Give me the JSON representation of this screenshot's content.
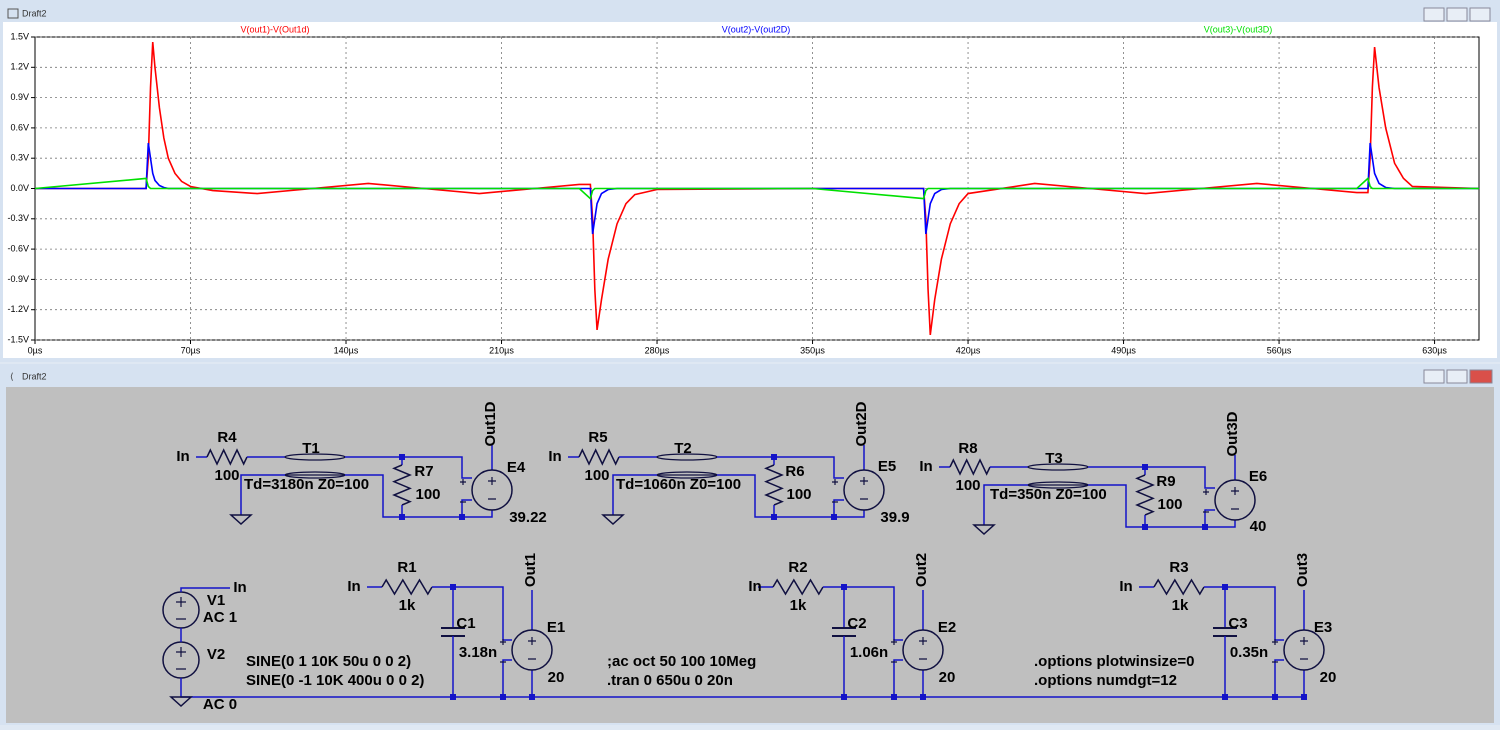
{
  "plot_window": {
    "title": "Draft2"
  },
  "chart_data": {
    "type": "line",
    "x": [
      0,
      50,
      51,
      52,
      53,
      54,
      56,
      58,
      60,
      63,
      66,
      70,
      80,
      100,
      125,
      150,
      175,
      200,
      225,
      245,
      250,
      251,
      252,
      253,
      255,
      258,
      262,
      266,
      270,
      280,
      350,
      400,
      401,
      402,
      403,
      405,
      408,
      412,
      416,
      420,
      450,
      475,
      500,
      525,
      550,
      575,
      595,
      600,
      601,
      602,
      603,
      605,
      608,
      612,
      616,
      620,
      650
    ],
    "series": [
      {
        "name": "V(out1)-V(Out1d)",
        "color": "#ff0000",
        "values": [
          0,
          0,
          0.3,
          1.0,
          1.45,
          1.2,
          0.8,
          0.5,
          0.3,
          0.15,
          0.07,
          0.02,
          -0.02,
          -0.05,
          0,
          0.05,
          0,
          -0.05,
          0,
          0.04,
          0.04,
          -0.3,
          -1.0,
          -1.4,
          -1.1,
          -0.7,
          -0.35,
          -0.15,
          -0.06,
          -0.01,
          0,
          0,
          -0.3,
          -1.0,
          -1.45,
          -1.1,
          -0.7,
          -0.35,
          -0.15,
          -0.05,
          0.05,
          0,
          -0.05,
          0,
          0.05,
          0,
          -0.04,
          -0.04,
          0.3,
          1.0,
          1.4,
          1.0,
          0.6,
          0.25,
          0.1,
          0.02,
          0
        ]
      },
      {
        "name": "V(out2)-V(out2D)",
        "color": "#0000ff",
        "values": [
          0,
          0,
          0.45,
          0.3,
          0.15,
          0.08,
          0.03,
          0.01,
          0,
          0,
          0,
          0,
          0,
          0,
          0,
          0,
          0,
          0,
          0,
          0,
          0,
          -0.45,
          -0.3,
          -0.15,
          -0.05,
          -0.01,
          0,
          0,
          0,
          0,
          0,
          0,
          -0.45,
          -0.3,
          -0.15,
          -0.05,
          -0.01,
          0,
          0,
          0,
          0,
          0,
          0,
          0,
          0,
          0,
          0,
          0,
          0.45,
          0.3,
          0.15,
          0.05,
          0.01,
          0,
          0,
          0,
          0
        ]
      },
      {
        "name": "V(out3)-V(out3D)",
        "color": "#00e000",
        "values": [
          0,
          0.1,
          0.02,
          0,
          0,
          0,
          0,
          0,
          0,
          0,
          0,
          0,
          0,
          0,
          0,
          0,
          0,
          0,
          0,
          0,
          -0.1,
          -0.02,
          0,
          0,
          0,
          0,
          0,
          0,
          0,
          0,
          0,
          -0.1,
          -0.02,
          0,
          0,
          0,
          0,
          0,
          0,
          0,
          0,
          0,
          0,
          0,
          0,
          0,
          0,
          0.1,
          0.02,
          0,
          0,
          0,
          0,
          0,
          0,
          0,
          0
        ]
      }
    ],
    "xlim": [
      0,
      650
    ],
    "xticks": [
      {
        "value": 0,
        "label": "0µs"
      },
      {
        "value": 70,
        "label": "70µs"
      },
      {
        "value": 140,
        "label": "140µs"
      },
      {
        "value": 210,
        "label": "210µs"
      },
      {
        "value": 280,
        "label": "280µs"
      },
      {
        "value": 350,
        "label": "350µs"
      },
      {
        "value": 420,
        "label": "420µs"
      },
      {
        "value": 490,
        "label": "490µs"
      },
      {
        "value": 560,
        "label": "560µs"
      },
      {
        "value": 630,
        "label": "630µs"
      }
    ],
    "ylim": [
      -1.5,
      1.5
    ],
    "yticks": [
      {
        "value": 1.5,
        "label": "1.5V"
      },
      {
        "value": 1.2,
        "label": "1.2V"
      },
      {
        "value": 0.9,
        "label": "0.9V"
      },
      {
        "value": 0.6,
        "label": "0.6V"
      },
      {
        "value": 0.3,
        "label": "0.3V"
      },
      {
        "value": 0,
        "label": "0.0V"
      },
      {
        "value": -0.3,
        "label": "-0.3V"
      },
      {
        "value": -0.6,
        "label": "-0.6V"
      },
      {
        "value": -0.9,
        "label": "-0.9V"
      },
      {
        "value": -1.2,
        "label": "-1.2V"
      },
      {
        "value": -1.5,
        "label": "-1.5V"
      }
    ],
    "grid": true
  },
  "schematic_window": {
    "title": "Draft2",
    "labels": [
      "In",
      "R4",
      "100",
      "T1",
      "Td=3180n Z0=100",
      "R7",
      "100",
      "Out1D",
      "E4",
      "39.22",
      "In",
      "R5",
      "100",
      "T2",
      "Td=1060n Z0=100",
      "R6",
      "100",
      "Out2D",
      "E5",
      "39.9",
      "In",
      "R8",
      "100",
      "T3",
      "Td=350n Z0=100",
      "R9",
      "100",
      "Out3D",
      "E6",
      "40",
      "In",
      "V1",
      "AC 1",
      "V2",
      "AC 0",
      "SINE(0 1 10K 50u 0 0 2)",
      "SINE(0 -1 10K 400u 0 0 2)",
      "In",
      "R1",
      "1k",
      "C1",
      "3.18n",
      "Out1",
      "E1",
      "20",
      ";ac oct 50 100 10Meg",
      ".tran 0 650u 0 20n",
      "In",
      "R2",
      "1k",
      "C2",
      "1.06n",
      "Out2",
      "E2",
      "20",
      ".options plotwinsize=0",
      ".options numdgt=12",
      "In",
      "R3",
      "1k",
      "C3",
      "0.35n",
      "Out3",
      "E3",
      "20"
    ]
  }
}
